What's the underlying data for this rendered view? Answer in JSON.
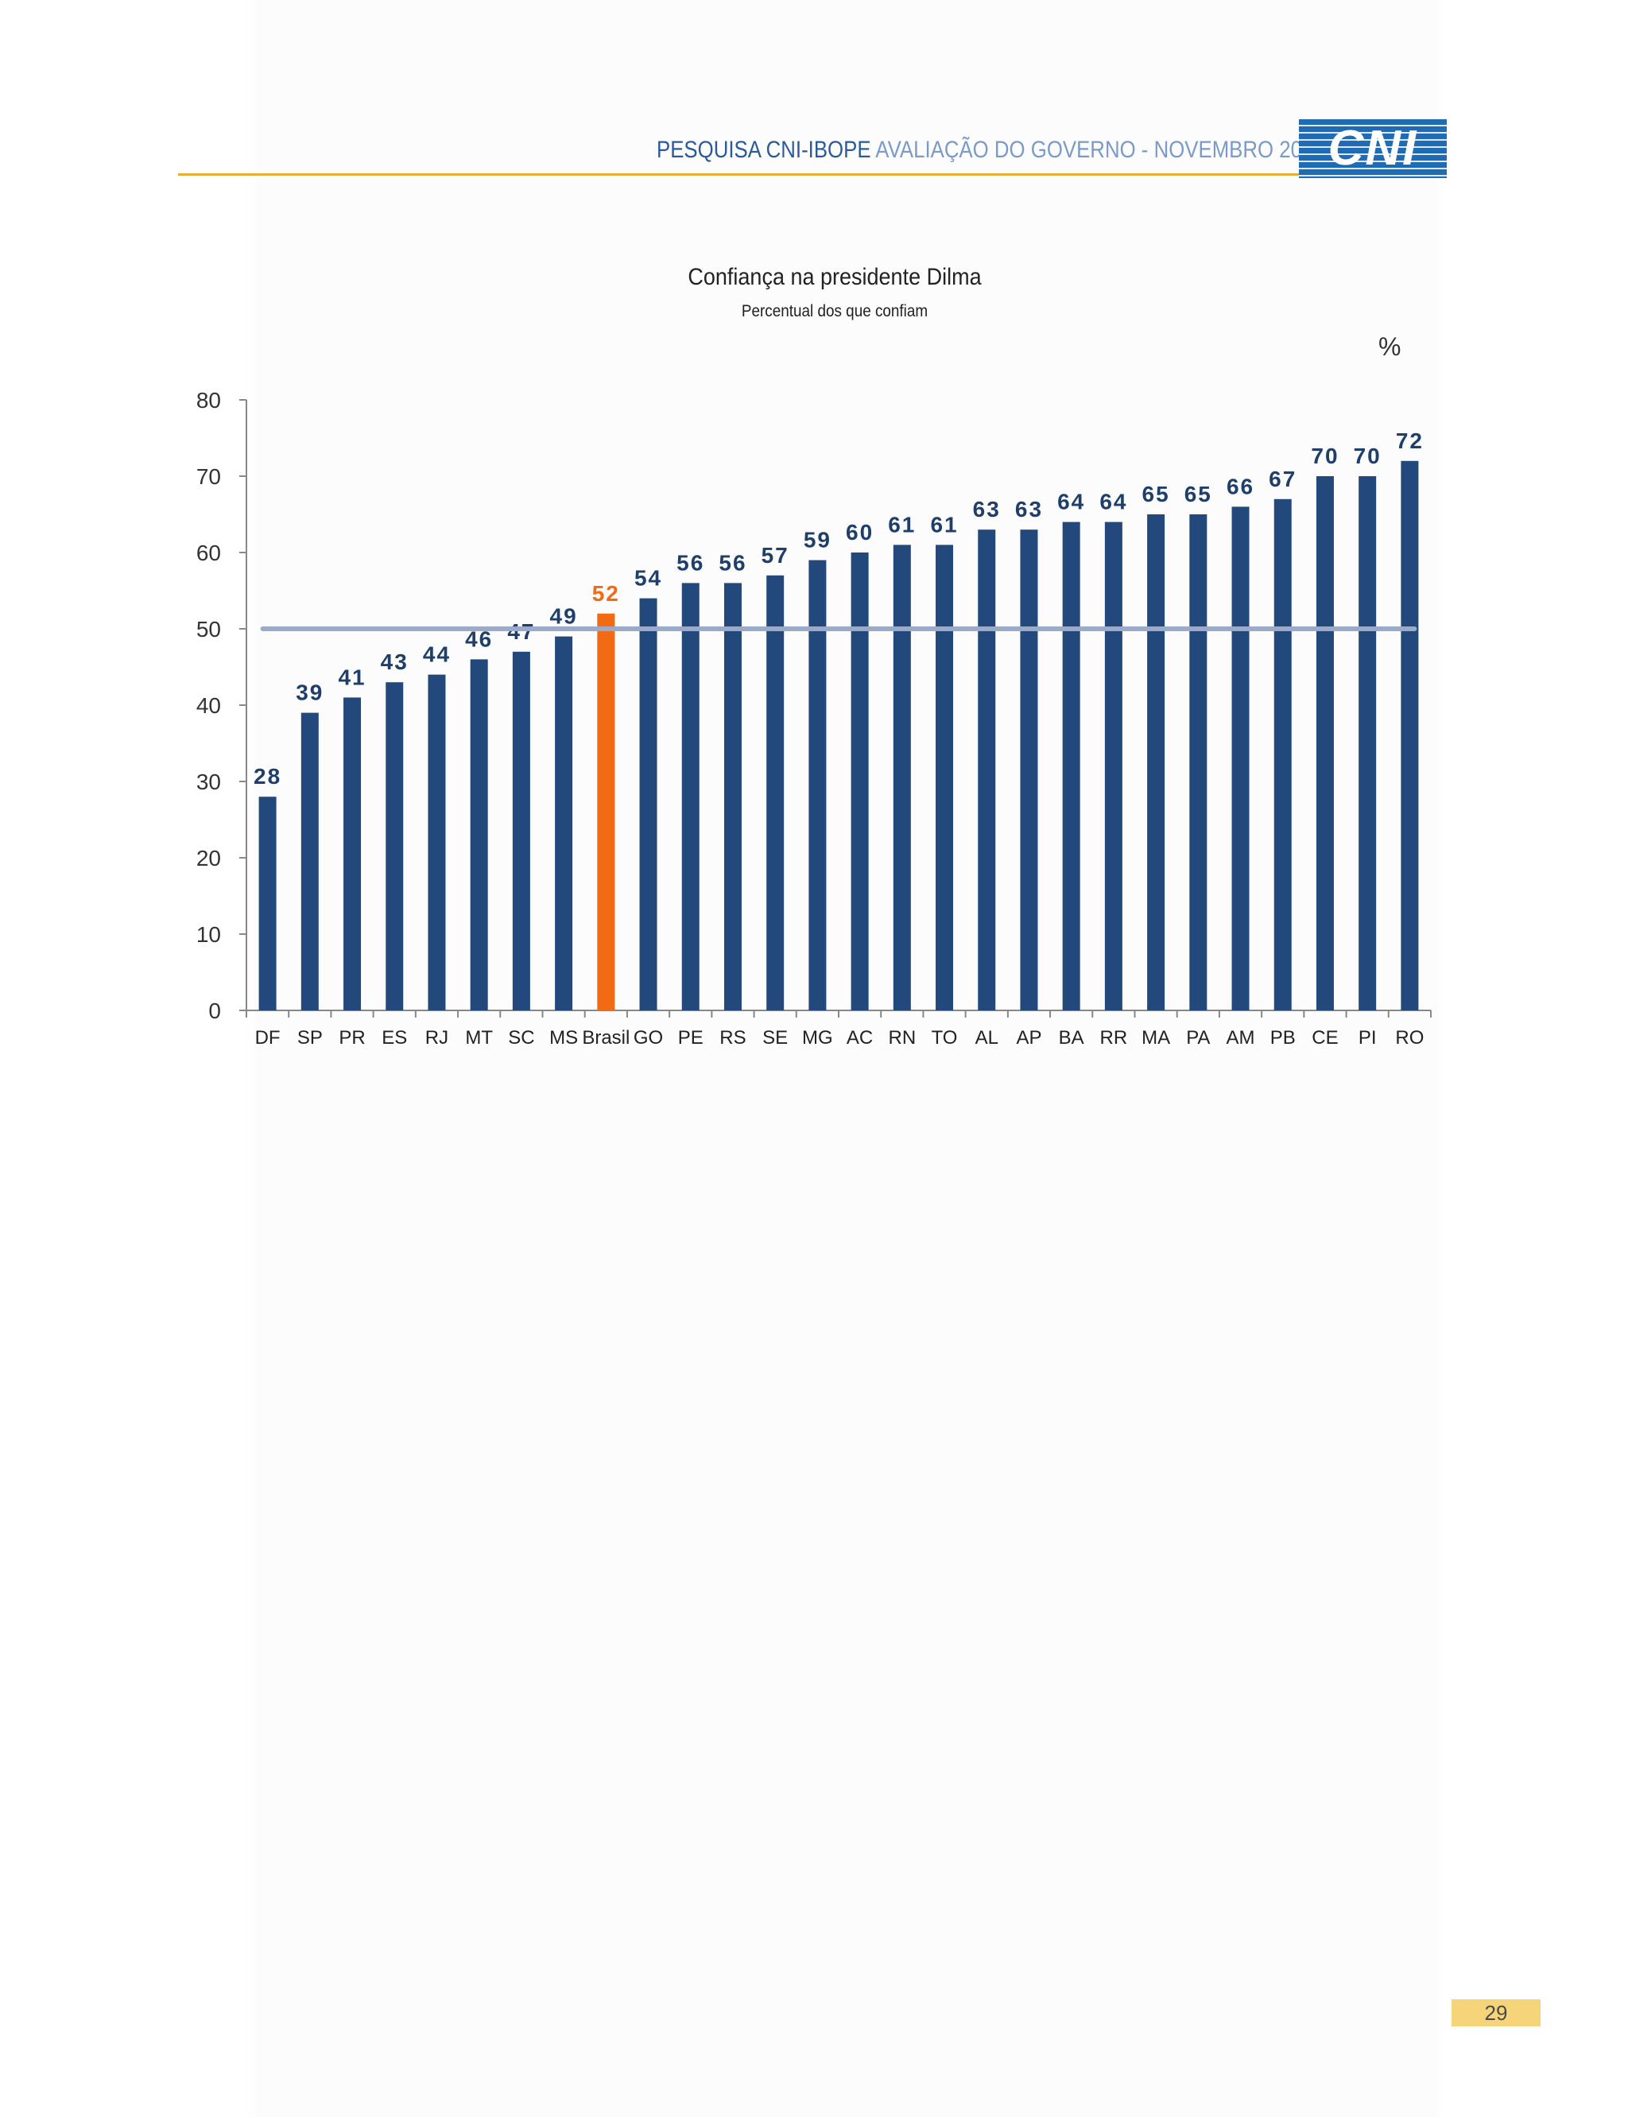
{
  "header": {
    "title_strong": "PESQUISA CNI-IBOPE",
    "title_light": "AVALIAÇÃO DO GOVERNO - NOVEMBRO 2013",
    "logo_text": "CNI"
  },
  "page_number": "29",
  "colors": {
    "bar": "#23497c",
    "highlight_bar": "#f26a13",
    "label": "#1f3f6b",
    "highlight_label": "#f26a13",
    "reference_line": "#9aaac8",
    "axis": "#888888",
    "header_rule": "#e6b037"
  },
  "chart_data": {
    "type": "bar",
    "title": "Confiança na presidente Dilma",
    "subtitle": "Percentual dos que confiam",
    "unit": "%",
    "categories": [
      "DF",
      "SP",
      "PR",
      "ES",
      "RJ",
      "MT",
      "SC",
      "MS",
      "Brasil",
      "GO",
      "PE",
      "RS",
      "SE",
      "MG",
      "AC",
      "RN",
      "TO",
      "AL",
      "AP",
      "BA",
      "RR",
      "MA",
      "PA",
      "AM",
      "PB",
      "CE",
      "PI",
      "RO"
    ],
    "values": [
      28,
      39,
      41,
      43,
      44,
      46,
      47,
      49,
      52,
      54,
      56,
      56,
      57,
      59,
      60,
      61,
      61,
      63,
      63,
      64,
      64,
      65,
      65,
      66,
      67,
      70,
      70,
      72
    ],
    "highlight_category": "Brasil",
    "reference_line": 50,
    "ylim": [
      0,
      80
    ],
    "yticks": [
      0,
      10,
      20,
      30,
      40,
      50,
      60,
      70,
      80
    ],
    "grid": false,
    "legend": "none"
  }
}
